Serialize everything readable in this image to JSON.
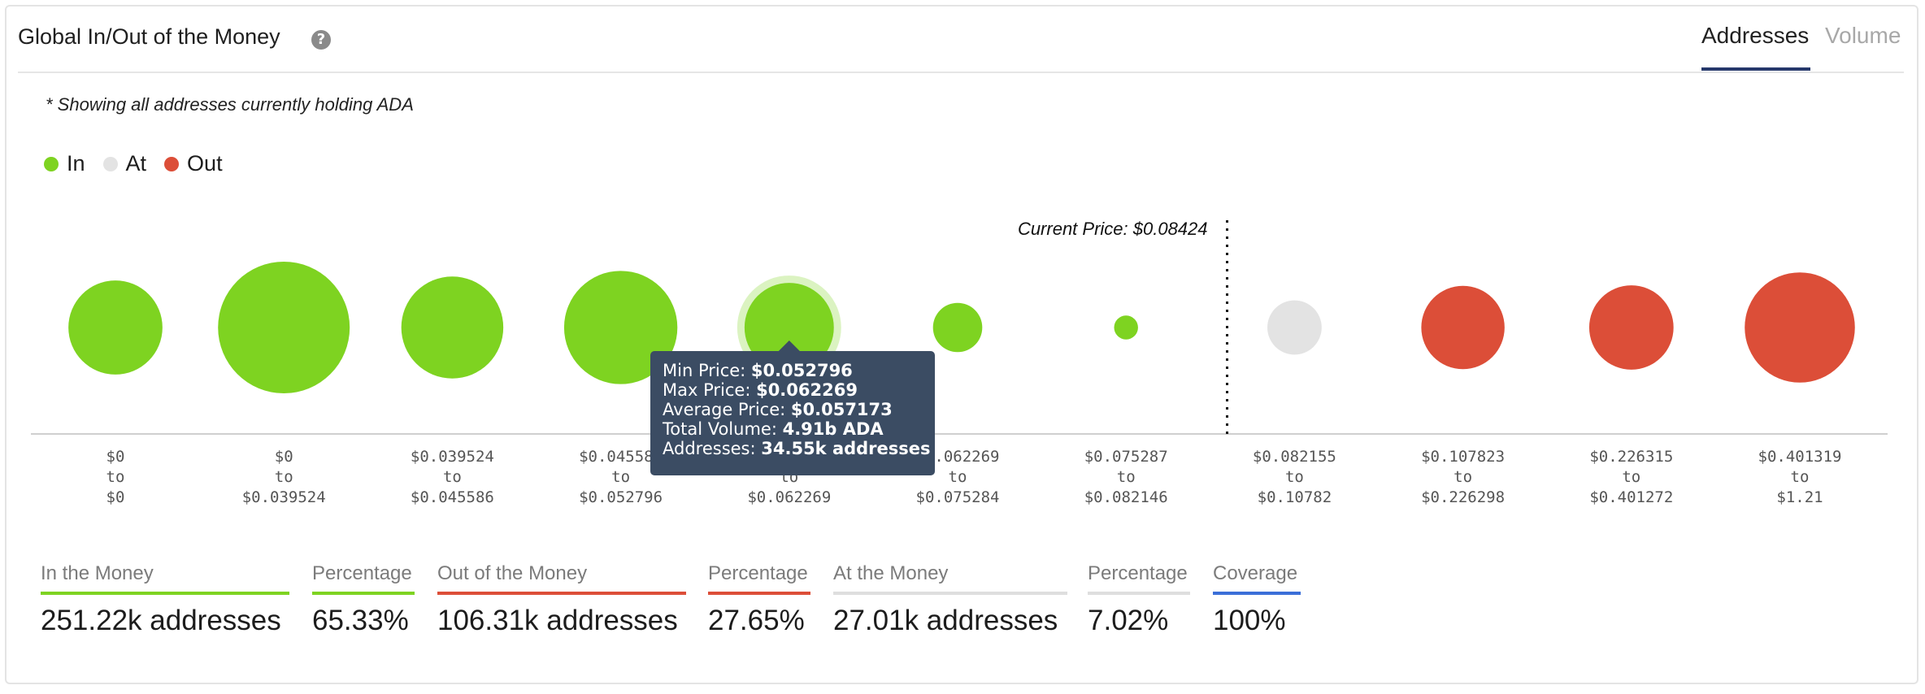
{
  "header": {
    "title": "Global In/Out of the Money",
    "help_icon": "question-circle-icon",
    "tabs": [
      {
        "label": "Addresses",
        "active": true
      },
      {
        "label": "Volume",
        "active": false
      }
    ]
  },
  "note": "* Showing all addresses currently holding ADA",
  "colors": {
    "in": "#7ed321",
    "at": "#e3e3e3",
    "out": "#dc4e38",
    "coverage": "#3b6fd8",
    "tooltip_bg": "#3b4c63"
  },
  "legend": [
    {
      "label": "In",
      "color": "#7ed321"
    },
    {
      "label": "At",
      "color": "#e3e3e3"
    },
    {
      "label": "Out",
      "color": "#dc4e38"
    }
  ],
  "chart_data": {
    "type": "scatter",
    "current_price_label": "Current Price: $0.08424",
    "current_price": 0.08424,
    "buckets": [
      {
        "from": "$0",
        "to": "$0",
        "status": "in",
        "size_rel": 0.51
      },
      {
        "from": "$0",
        "to": "$0.039524",
        "status": "in",
        "size_rel": 1.0
      },
      {
        "from": "$0.039524",
        "to": "$0.045586",
        "status": "in",
        "size_rel": 0.6
      },
      {
        "from": "$0.045586",
        "to": "$0.052796",
        "status": "in",
        "size_rel": 0.74
      },
      {
        "from": "$0.052796",
        "to": "$0.062269",
        "status": "in",
        "size_rel": 0.46,
        "highlighted": true
      },
      {
        "from": "$0.062269",
        "to": "$0.075284",
        "status": "in",
        "size_rel": 0.14
      },
      {
        "from": "$0.075287",
        "to": "$0.082146",
        "status": "in",
        "size_rel": 0.033
      },
      {
        "from": "$0.082155",
        "to": "$0.10782",
        "status": "at",
        "size_rel": 0.17
      },
      {
        "from": "$0.107823",
        "to": "$0.226298",
        "status": "out",
        "size_rel": 0.4
      },
      {
        "from": "$0.226315",
        "to": "$0.401272",
        "status": "out",
        "size_rel": 0.41
      },
      {
        "from": "$0.401319",
        "to": "$1.21",
        "status": "out",
        "size_rel": 0.7
      }
    ],
    "range_joiner": "to",
    "tooltip": {
      "bucket_index": 4,
      "lines": [
        {
          "label": "Min Price:",
          "value": "$0.052796"
        },
        {
          "label": "Max Price:",
          "value": "$0.062269"
        },
        {
          "label": "Average Price:",
          "value": "$0.057173"
        },
        {
          "label": "Total Volume:",
          "value": "4.91b ADA"
        },
        {
          "label": "Addresses:",
          "value": "34.55k addresses"
        }
      ]
    }
  },
  "stats": [
    {
      "label": "In the Money",
      "value": "251.22k addresses",
      "color": "#7ed321"
    },
    {
      "label": "Percentage",
      "value": "65.33%",
      "color": "#7ed321"
    },
    {
      "label": "Out of the Money",
      "value": "106.31k addresses",
      "color": "#dc4e38"
    },
    {
      "label": "Percentage",
      "value": "27.65%",
      "color": "#dc4e38"
    },
    {
      "label": "At the Money",
      "value": "27.01k addresses",
      "color": "#dedede"
    },
    {
      "label": "Percentage",
      "value": "7.02%",
      "color": "#dedede"
    },
    {
      "label": "Coverage",
      "value": "100%",
      "color": "#3b6fd8"
    }
  ]
}
